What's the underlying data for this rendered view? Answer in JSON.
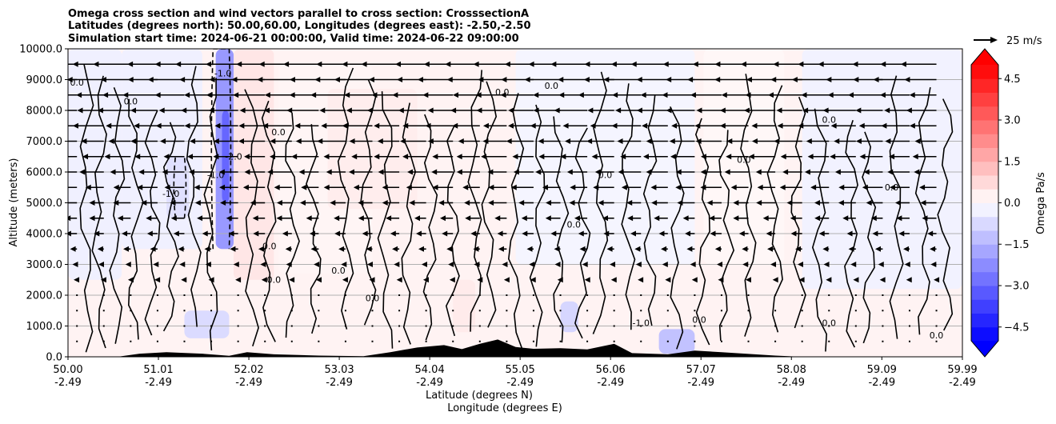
{
  "chart_data": {
    "type": "heatmap",
    "title_lines": [
      "Omega cross section and wind vectors parallel to cross section: CrosssectionA",
      "Latitudes (degrees north): 50.00,60.00, Longitudes (degrees east): -2.50,-2.50",
      "Simulation start time: 2024-06-21 00:00:00, Valid time: 2024-06-22 09:00:00"
    ],
    "ylabel": "Altitude (meters)",
    "xlabel_lines": [
      "Latitude (degrees N)",
      "Longitude (degrees E)"
    ],
    "ylim": [
      0,
      10000
    ],
    "xlim": [
      50.0,
      59.99
    ],
    "grid": true,
    "y_ticks": [
      {
        "value": 0,
        "label": "0.0"
      },
      {
        "value": 1000,
        "label": "1000.0"
      },
      {
        "value": 2000,
        "label": "2000.0"
      },
      {
        "value": 3000,
        "label": "3000.0"
      },
      {
        "value": 4000,
        "label": "4000.0"
      },
      {
        "value": 5000,
        "label": "5000.0"
      },
      {
        "value": 6000,
        "label": "6000.0"
      },
      {
        "value": 7000,
        "label": "7000.0"
      },
      {
        "value": 8000,
        "label": "8000.0"
      },
      {
        "value": 9000,
        "label": "9000.0"
      },
      {
        "value": 10000,
        "label": "10000.0"
      }
    ],
    "x_ticks": [
      {
        "value": 50.0,
        "lat": "50.00",
        "lon": "-2.49"
      },
      {
        "value": 51.01,
        "lat": "51.01",
        "lon": "-2.49"
      },
      {
        "value": 52.02,
        "lat": "52.02",
        "lon": "-2.49"
      },
      {
        "value": 53.03,
        "lat": "53.03",
        "lon": "-2.49"
      },
      {
        "value": 54.04,
        "lat": "54.04",
        "lon": "-2.49"
      },
      {
        "value": 55.05,
        "lat": "55.05",
        "lon": "-2.49"
      },
      {
        "value": 56.06,
        "lat": "56.06",
        "lon": "-2.49"
      },
      {
        "value": 57.07,
        "lat": "57.07",
        "lon": "-2.49"
      },
      {
        "value": 58.08,
        "lat": "58.08",
        "lon": "-2.49"
      },
      {
        "value": 59.09,
        "lat": "59.09",
        "lon": "-2.49"
      },
      {
        "value": 59.99,
        "lat": "59.99",
        "lon": "-2.49"
      }
    ],
    "colorbar": {
      "label": "Omega Pa/s",
      "vmin": -5.0,
      "vmax": 5.0,
      "ticks": [
        {
          "value": 4.5,
          "label": "4.5"
        },
        {
          "value": 3.0,
          "label": "3.0"
        },
        {
          "value": 1.5,
          "label": "1.5"
        },
        {
          "value": 0.0,
          "label": "0.0"
        },
        {
          "value": -1.5,
          "label": "−1.5"
        },
        {
          "value": -3.0,
          "label": "−3.0"
        },
        {
          "value": -4.5,
          "label": "−4.5"
        }
      ],
      "negative_color": "#0000ff",
      "positive_color": "#ff0000",
      "neutral_color": "#ffffff"
    },
    "quiver_key": {
      "label": "25 m/s",
      "speed": 25
    },
    "omega_regions": [
      {
        "lat": [
          50.0,
          50.6
        ],
        "alt": [
          2500,
          10000
        ],
        "omega": -0.3
      },
      {
        "lat": [
          50.6,
          51.5
        ],
        "alt": [
          3500,
          10000
        ],
        "omega": -0.3
      },
      {
        "lat": [
          51.1,
          51.35
        ],
        "alt": [
          4500,
          6500
        ],
        "omega": -0.6
      },
      {
        "lat": [
          51.65,
          51.85
        ],
        "alt": [
          3500,
          10000
        ],
        "omega": -2.0
      },
      {
        "lat": [
          51.72,
          51.8
        ],
        "alt": [
          5000,
          8000
        ],
        "omega": -3.0
      },
      {
        "lat": [
          51.85,
          52.3
        ],
        "alt": [
          2500,
          10000
        ],
        "omega": 0.5
      },
      {
        "lat": [
          52.35,
          53.4
        ],
        "alt": [
          2700,
          9500
        ],
        "omega": 0.2
      },
      {
        "lat": [
          52.9,
          53.9
        ],
        "alt": [
          4800,
          8700
        ],
        "omega": 0.35
      },
      {
        "lat": [
          55.0,
          57.0
        ],
        "alt": [
          3000,
          10000
        ],
        "omega": -0.2
      },
      {
        "lat": [
          57.1,
          58.0
        ],
        "alt": [
          3000,
          10000
        ],
        "omega": 0.15
      },
      {
        "lat": [
          58.2,
          59.99
        ],
        "alt": [
          2200,
          10000
        ],
        "omega": -0.25
      },
      {
        "lat": [
          51.3,
          51.8
        ],
        "alt": [
          600,
          1500
        ],
        "omega": -0.7
      },
      {
        "lat": [
          55.5,
          55.7
        ],
        "alt": [
          800,
          1800
        ],
        "omega": -0.8
      },
      {
        "lat": [
          56.6,
          57.0
        ],
        "alt": [
          100,
          900
        ],
        "omega": -1.2
      },
      {
        "lat": [
          54.3,
          54.55
        ],
        "alt": [
          800,
          2500
        ],
        "omega": 0.4
      }
    ],
    "terrain": [
      {
        "lat": 50.0,
        "alt": 0
      },
      {
        "lat": 50.55,
        "alt": 0
      },
      {
        "lat": 50.8,
        "alt": 100
      },
      {
        "lat": 51.1,
        "alt": 150
      },
      {
        "lat": 51.5,
        "alt": 100
      },
      {
        "lat": 51.8,
        "alt": 30
      },
      {
        "lat": 52.0,
        "alt": 150
      },
      {
        "lat": 52.3,
        "alt": 80
      },
      {
        "lat": 52.8,
        "alt": 40
      },
      {
        "lat": 53.3,
        "alt": 20
      },
      {
        "lat": 53.6,
        "alt": 150
      },
      {
        "lat": 53.9,
        "alt": 300
      },
      {
        "lat": 54.2,
        "alt": 380
      },
      {
        "lat": 54.4,
        "alt": 250
      },
      {
        "lat": 54.6,
        "alt": 420
      },
      {
        "lat": 54.8,
        "alt": 560
      },
      {
        "lat": 55.0,
        "alt": 320
      },
      {
        "lat": 55.2,
        "alt": 260
      },
      {
        "lat": 55.5,
        "alt": 280
      },
      {
        "lat": 55.8,
        "alt": 240
      },
      {
        "lat": 56.1,
        "alt": 420
      },
      {
        "lat": 56.3,
        "alt": 120
      },
      {
        "lat": 56.7,
        "alt": 80
      },
      {
        "lat": 57.0,
        "alt": 200
      },
      {
        "lat": 57.3,
        "alt": 150
      },
      {
        "lat": 57.9,
        "alt": 40
      },
      {
        "lat": 58.2,
        "alt": 0
      },
      {
        "lat": 59.99,
        "alt": 0
      }
    ],
    "zero_contour_lats": [
      50.2,
      50.35,
      50.55,
      50.75,
      50.95,
      51.15,
      51.4,
      51.6,
      52.05,
      52.25,
      52.5,
      52.75,
      53.1,
      53.35,
      53.55,
      53.8,
      54.05,
      54.3,
      54.55,
      54.7,
      55.0,
      55.25,
      55.5,
      55.75,
      55.95,
      56.25,
      56.5,
      56.8,
      57.1,
      57.35,
      57.6,
      57.9,
      58.15,
      58.4,
      58.75,
      58.95,
      59.25,
      59.55,
      59.8
    ],
    "dashed_contours": [
      {
        "lat": [
          51.62,
          51.8
        ],
        "alt": [
          3500,
          10000
        ],
        "level": -2.0
      },
      {
        "lat": [
          51.2,
          51.3
        ],
        "alt": [
          4500,
          6500
        ],
        "level": -1.0
      }
    ],
    "contour_labels": [
      {
        "lat": 50.1,
        "alt": 8800,
        "text": "0.0"
      },
      {
        "lat": 50.7,
        "alt": 8200,
        "text": "0.0"
      },
      {
        "lat": 51.15,
        "alt": 5200,
        "text": "-1.0"
      },
      {
        "lat": 51.65,
        "alt": 5800,
        "text": "-1.0"
      },
      {
        "lat": 51.73,
        "alt": 9100,
        "text": "-1.0"
      },
      {
        "lat": 51.85,
        "alt": 6400,
        "text": "-2.0"
      },
      {
        "lat": 52.25,
        "alt": 3500,
        "text": "0.0"
      },
      {
        "lat": 52.35,
        "alt": 7200,
        "text": "0.0"
      },
      {
        "lat": 52.3,
        "alt": 2400,
        "text": "0.0"
      },
      {
        "lat": 53.02,
        "alt": 2700,
        "text": "0.0"
      },
      {
        "lat": 53.4,
        "alt": 1800,
        "text": "0.0"
      },
      {
        "lat": 54.85,
        "alt": 8500,
        "text": "0.0"
      },
      {
        "lat": 55.4,
        "alt": 8700,
        "text": "0.0"
      },
      {
        "lat": 55.65,
        "alt": 4200,
        "text": "0.0"
      },
      {
        "lat": 56.0,
        "alt": 5800,
        "text": "0.0"
      },
      {
        "lat": 56.4,
        "alt": 1000,
        "text": "-1.0"
      },
      {
        "lat": 57.05,
        "alt": 1100,
        "text": "0.0"
      },
      {
        "lat": 57.55,
        "alt": 6300,
        "text": "0.0"
      },
      {
        "lat": 58.5,
        "alt": 1000,
        "text": "0.0"
      },
      {
        "lat": 58.5,
        "alt": 7600,
        "text": "0.0"
      },
      {
        "lat": 59.2,
        "alt": 5400,
        "text": "0.0"
      },
      {
        "lat": 59.7,
        "alt": 600,
        "text": "0.0"
      }
    ],
    "wind_rows": [
      {
        "alt": 9500,
        "u": -3.2
      },
      {
        "alt": 9000,
        "u": -3.2
      },
      {
        "alt": 8500,
        "u": -3.0
      },
      {
        "alt": 8000,
        "u": -2.8
      },
      {
        "alt": 7500,
        "u": -2.6
      },
      {
        "alt": 7000,
        "u": -2.4
      },
      {
        "alt": 6500,
        "u": -2.3
      },
      {
        "alt": 6000,
        "u": -2.1
      },
      {
        "alt": 5500,
        "u": -1.9
      },
      {
        "alt": 5000,
        "u": -1.6
      },
      {
        "alt": 4500,
        "u": -1.3
      },
      {
        "alt": 4000,
        "u": -1.0
      },
      {
        "alt": 3500,
        "u": -0.7
      },
      {
        "alt": 3000,
        "u": -0.5
      },
      {
        "alt": 2500,
        "u": -0.3
      },
      {
        "alt": 2000,
        "u": -0.2
      },
      {
        "alt": 1500,
        "u": -0.1
      },
      {
        "alt": 1000,
        "u": -0.1
      },
      {
        "alt": 500,
        "u": -0.05
      }
    ],
    "wind_column_step": 0.3
  }
}
